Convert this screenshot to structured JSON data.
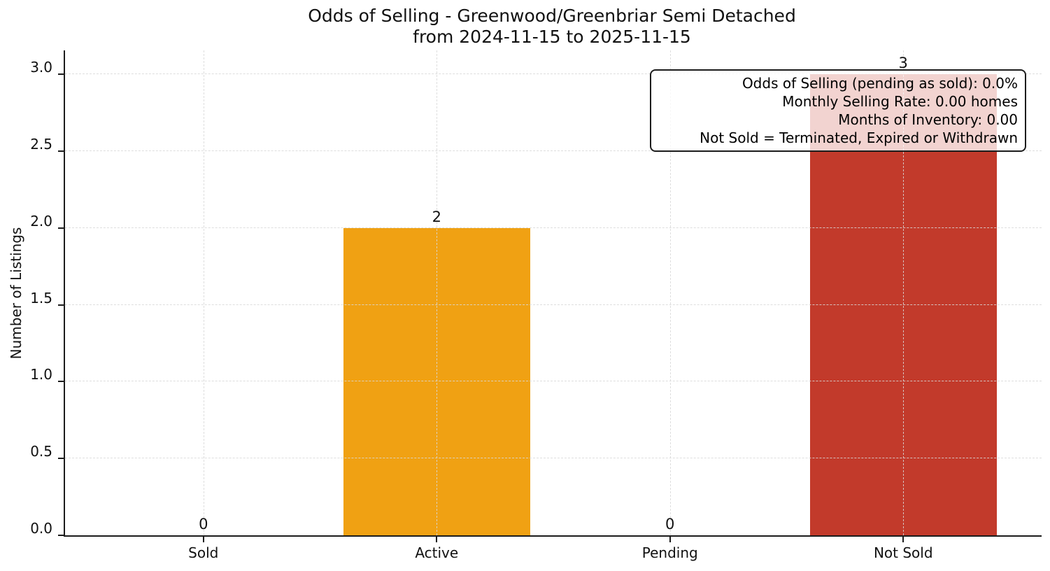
{
  "chart_data": {
    "type": "bar",
    "title": "Odds of Selling - Greenwood/Greenbriar Semi Detached",
    "subtitle": "from 2024-11-15 to 2025-11-15",
    "categories": [
      "Sold",
      "Active",
      "Pending",
      "Not Sold"
    ],
    "values": [
      0,
      2,
      0,
      3
    ],
    "bar_colors": {
      "Active": "#f0a113",
      "Not Sold": "#c23a2b"
    },
    "xlabel": "",
    "ylabel": "Number of Listings",
    "ytick_labels": [
      "0.0",
      "0.5",
      "1.0",
      "1.5",
      "2.0",
      "2.5",
      "3.0"
    ],
    "ylim": [
      0,
      3.155
    ],
    "grid": "dashed light-gray horizontal and vertical gridlines, drawn above bars",
    "legend_position": "none",
    "annotation": {
      "align": "right",
      "lines": [
        "Odds of Selling (pending as sold): 0.0%",
        "Monthly Selling Rate: 0.00 homes",
        "Months of Inventory: 0.00",
        "Not Sold = Terminated, Expired or Withdrawn"
      ]
    },
    "style_colors": {
      "axis": "#1c1c1c",
      "grid": "#d9d9d9",
      "text": "#000000",
      "annotation_background": "rgba(255,255,255,0.78)"
    }
  }
}
